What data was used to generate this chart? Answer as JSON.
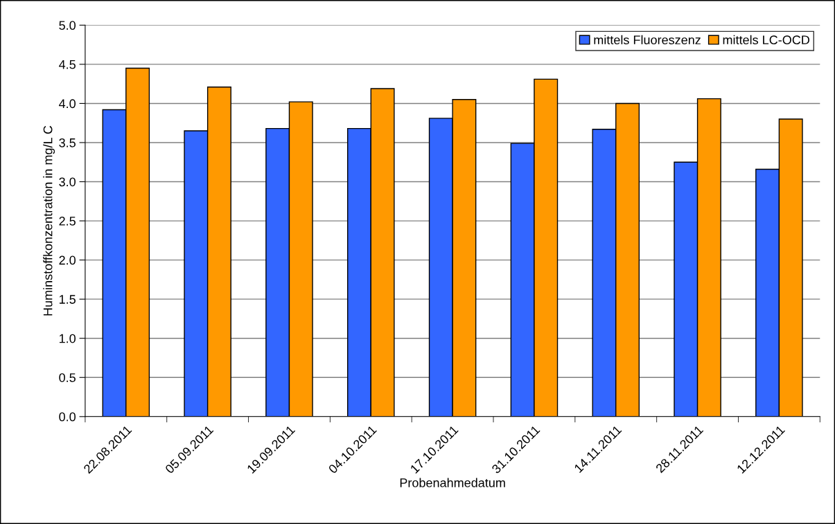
{
  "chart_data": {
    "type": "bar",
    "xlabel": "Probenahmedatum",
    "ylabel": "Huminstoffkonzentration in mg/L C",
    "categories": [
      "22.08.2011",
      "05.09.2011",
      "19.09.2011",
      "04.10.2011",
      "17.10.2011",
      "31.10.2011",
      "14.11.2011",
      "28.11.2011",
      "12.12.2011"
    ],
    "series": [
      {
        "name": "mittels Fluoreszenz",
        "color": "#3366ff",
        "values": [
          3.92,
          3.65,
          3.68,
          3.68,
          3.81,
          3.49,
          3.67,
          3.25,
          3.16
        ]
      },
      {
        "name": "mittels LC-OCD",
        "color": "#ff9900",
        "values": [
          4.45,
          4.21,
          4.02,
          4.19,
          4.05,
          4.31,
          4.0,
          4.06,
          3.8
        ]
      }
    ],
    "ylim": [
      0,
      5
    ],
    "yticks": [
      {
        "value": 0,
        "label": "0.0"
      },
      {
        "value": 0.5,
        "label": "0.5"
      },
      {
        "value": 1,
        "label": "1.0"
      },
      {
        "value": 1.5,
        "label": "1.5"
      },
      {
        "value": 2,
        "label": "2.0"
      },
      {
        "value": 2.5,
        "label": "2.5"
      },
      {
        "value": 3,
        "label": "3.0"
      },
      {
        "value": 3.5,
        "label": "3.5"
      },
      {
        "value": 4,
        "label": "4.0"
      },
      {
        "value": 4.5,
        "label": "4.5"
      },
      {
        "value": 5,
        "label": "5.0"
      }
    ],
    "grid": "y",
    "legend": "top right"
  }
}
